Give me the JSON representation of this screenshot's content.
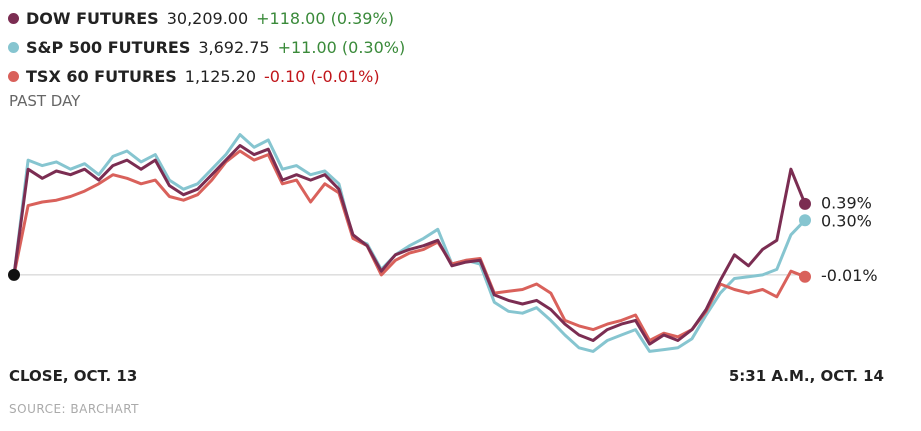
{
  "chart_data": {
    "type": "line",
    "subtitle": "PAST DAY",
    "x_start_label": "CLOSE, OCT. 13",
    "x_end_label": "5:31 A.M., OCT. 14",
    "source": "SOURCE: BARCHART",
    "ylim": [
      -0.5,
      0.85
    ],
    "zero_line": 0,
    "series": [
      {
        "name": "DOW FUTURES",
        "last": "30,209.00",
        "change": "+118.00 (0.39%)",
        "change_color": "#3a8a3a",
        "color": "#7b2d52",
        "values": [
          0,
          0.58,
          0.53,
          0.57,
          0.55,
          0.58,
          0.52,
          0.6,
          0.63,
          0.58,
          0.63,
          0.49,
          0.44,
          0.47,
          0.55,
          0.63,
          0.71,
          0.66,
          0.69,
          0.52,
          0.55,
          0.52,
          0.55,
          0.47,
          0.22,
          0.16,
          0.02,
          0.11,
          0.14,
          0.16,
          0.19,
          0.05,
          0.07,
          0.08,
          -0.11,
          -0.14,
          -0.16,
          -0.14,
          -0.19,
          -0.27,
          -0.33,
          -0.36,
          -0.3,
          -0.27,
          -0.25,
          -0.38,
          -0.33,
          -0.36,
          -0.3,
          -0.19,
          -0.03,
          0.11,
          0.05,
          0.14,
          0.19,
          0.58,
          0.39
        ],
        "end_label": "0.39%"
      },
      {
        "name": "S&P 500 FUTURES",
        "last": "3,692.75",
        "change": "+11.00 (0.30%)",
        "change_color": "#3a8a3a",
        "color": "#86c5d0",
        "values": [
          0,
          0.63,
          0.6,
          0.62,
          0.58,
          0.61,
          0.55,
          0.65,
          0.68,
          0.62,
          0.66,
          0.52,
          0.47,
          0.5,
          0.58,
          0.66,
          0.77,
          0.7,
          0.74,
          0.58,
          0.6,
          0.55,
          0.57,
          0.5,
          0.2,
          0.17,
          0.03,
          0.11,
          0.16,
          0.2,
          0.25,
          0.06,
          0.08,
          0.06,
          -0.15,
          -0.2,
          -0.21,
          -0.18,
          -0.25,
          -0.33,
          -0.4,
          -0.42,
          -0.36,
          -0.33,
          -0.3,
          -0.42,
          -0.41,
          -0.4,
          -0.35,
          -0.22,
          -0.1,
          -0.02,
          -0.01,
          0,
          0.03,
          0.22,
          0.3
        ],
        "end_label": "0.30%"
      },
      {
        "name": "TSX 60 FUTURES",
        "last": "1,125.20",
        "change": "-0.10 (-0.01%)",
        "change_color": "#c0161b",
        "color": "#d9615b",
        "values": [
          0,
          0.38,
          0.4,
          0.41,
          0.43,
          0.46,
          0.5,
          0.55,
          0.53,
          0.5,
          0.52,
          0.43,
          0.41,
          0.44,
          0.52,
          0.62,
          0.68,
          0.63,
          0.66,
          0.5,
          0.52,
          0.4,
          0.5,
          0.45,
          0.2,
          0.16,
          0,
          0.08,
          0.12,
          0.14,
          0.18,
          0.06,
          0.08,
          0.09,
          -0.1,
          -0.09,
          -0.08,
          -0.05,
          -0.1,
          -0.25,
          -0.28,
          -0.3,
          -0.27,
          -0.25,
          -0.22,
          -0.36,
          -0.32,
          -0.34,
          -0.3,
          -0.2,
          -0.05,
          -0.08,
          -0.1,
          -0.08,
          -0.12,
          0.02,
          -0.01
        ],
        "end_label": "-0.01%"
      }
    ]
  }
}
